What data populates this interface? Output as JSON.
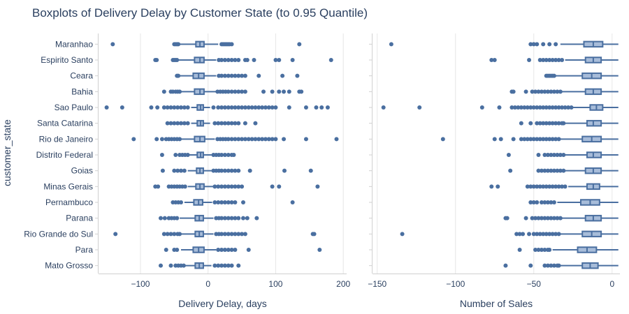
{
  "chart_data": {
    "title": "Boxplots of Delivery Delay by Customer State (to 0.95 Quantile)",
    "ylabel": "customer_state",
    "colors": {
      "fill": "#a7bcd9",
      "line": "#4a6fa0",
      "point": "#4a6fa0",
      "grid": "#e6e6e6",
      "axis": "#d0d0d0"
    },
    "states": [
      "Maranhao",
      "Espirito Santo",
      "Ceara",
      "Bahia",
      "Sao Paulo",
      "Santa Catarina",
      "Rio de Janeiro",
      "Distrito Federal",
      "Goias",
      "Minas Gerais",
      "Pernambuco",
      "Parana",
      "Rio Grande do Sul",
      "Para",
      "Mato Grosso"
    ],
    "panels": [
      {
        "type": "box",
        "orientation": "horizontal",
        "xlabel": "Delivery Delay, days",
        "xlim": [
          -162,
          205
        ],
        "xticks": [
          -100,
          0,
          100,
          200
        ],
        "xtick_labels": [
          "−100",
          "0",
          "100",
          "200"
        ],
        "boxes": [
          {
            "q1": -18,
            "median": -12,
            "q3": -6,
            "whisker_low": -42,
            "whisker_high": 15,
            "outliers": [
              -141,
              -50,
              -48,
              -46,
              -44,
              20,
              22,
              24,
              26,
              28,
              30,
              32,
              35,
              135
            ]
          },
          {
            "q1": -20,
            "median": -12,
            "q3": -6,
            "whisker_low": -45,
            "whisker_high": 12,
            "outliers": [
              -78,
              -76,
              -52,
              -50,
              -48,
              -46,
              16,
              20,
              25,
              30,
              35,
              40,
              45,
              55,
              58,
              68,
              100,
              105,
              125,
              182
            ]
          },
          {
            "q1": -22,
            "median": -14,
            "q3": -6,
            "whisker_low": -44,
            "whisker_high": 12,
            "outliers": [
              -46,
              -44,
              16,
              20,
              25,
              30,
              35,
              40,
              45,
              50,
              55,
              75,
              110,
              132
            ]
          },
          {
            "q1": -20,
            "median": -12,
            "q3": -6,
            "whisker_low": -40,
            "whisker_high": 12,
            "outliers": [
              -65,
              -55,
              -52,
              -48,
              -45,
              -42,
              14,
              18,
              22,
              26,
              30,
              35,
              40,
              45,
              50,
              55,
              82,
              95,
              105,
              112,
              120,
              135,
              138
            ]
          },
          {
            "q1": -16,
            "median": -11,
            "q3": -7,
            "whisker_low": -25,
            "whisker_high": 3,
            "outliers": [
              -150,
              -127,
              -84,
              -75,
              -65,
              -60,
              -55,
              -50,
              -45,
              -40,
              -35,
              -30,
              8,
              15,
              20,
              25,
              30,
              35,
              40,
              45,
              50,
              55,
              60,
              65,
              70,
              75,
              80,
              85,
              90,
              95,
              100,
              120,
              145,
              160,
              168,
              177
            ]
          },
          {
            "q1": -16,
            "median": -11,
            "q3": -7,
            "whisker_low": -25,
            "whisker_high": 3,
            "outliers": [
              -60,
              -55,
              -50,
              -45,
              -40,
              -35,
              -30,
              10,
              15,
              20,
              25,
              30,
              35,
              40,
              45,
              55,
              70
            ]
          },
          {
            "q1": -20,
            "median": -12,
            "q3": -5,
            "whisker_low": -40,
            "whisker_high": 10,
            "outliers": [
              -110,
              -76,
              -68,
              -62,
              -58,
              -54,
              -50,
              -46,
              -42,
              14,
              18,
              22,
              26,
              30,
              35,
              40,
              45,
              50,
              55,
              60,
              65,
              70,
              75,
              80,
              85,
              90,
              95,
              100,
              112,
              145,
              190
            ]
          },
          {
            "q1": -16,
            "median": -11,
            "q3": -7,
            "whisker_low": -28,
            "whisker_high": 5,
            "outliers": [
              -68,
              -48,
              -42,
              -38,
              -34,
              -30,
              8,
              12,
              16,
              20,
              25,
              30,
              35,
              38
            ]
          },
          {
            "q1": -17,
            "median": -12,
            "q3": -7,
            "whisker_low": -30,
            "whisker_high": 5,
            "outliers": [
              -67,
              -50,
              -45,
              -40,
              -35,
              8,
              12,
              16,
              20,
              25,
              30,
              35,
              40,
              45,
              62,
              113,
              152
            ]
          },
          {
            "q1": -18,
            "median": -12,
            "q3": -6,
            "whisker_low": -30,
            "whisker_high": 8,
            "outliers": [
              -78,
              -74,
              -58,
              -54,
              -50,
              -46,
              -42,
              -38,
              -34,
              10,
              15,
              20,
              25,
              30,
              35,
              40,
              45,
              50,
              95,
              105,
              162
            ]
          },
          {
            "q1": -21,
            "median": -14,
            "q3": -8,
            "whisker_low": -35,
            "whisker_high": 6,
            "outliers": [
              -52,
              -48,
              -44,
              -40,
              10,
              15,
              20,
              25,
              30,
              35,
              40,
              52,
              125
            ]
          },
          {
            "q1": -19,
            "median": -13,
            "q3": -7,
            "whisker_low": -42,
            "whisker_high": 8,
            "outliers": [
              -70,
              -64,
              -58,
              -54,
              -50,
              -46,
              12,
              16,
              20,
              25,
              30,
              35,
              40,
              45,
              52,
              58,
              72
            ]
          },
          {
            "q1": -19,
            "median": -13,
            "q3": -7,
            "whisker_low": -40,
            "whisker_high": 8,
            "outliers": [
              -137,
              -65,
              -60,
              -55,
              -50,
              -45,
              -42,
              12,
              16,
              20,
              25,
              30,
              35,
              40,
              45,
              50,
              55,
              155,
              157
            ]
          },
          {
            "q1": -22,
            "median": -14,
            "q3": -6,
            "whisker_low": -40,
            "whisker_high": 12,
            "outliers": [
              -62,
              -50,
              -46,
              15,
              20,
              25,
              30,
              35,
              40,
              60,
              165
            ]
          },
          {
            "q1": -19,
            "median": -13,
            "q3": -7,
            "whisker_low": -35,
            "whisker_high": 5,
            "outliers": [
              -70,
              -55,
              -48,
              -44,
              -40,
              -36,
              10,
              15,
              20,
              25,
              30,
              35,
              45
            ]
          }
        ]
      },
      {
        "type": "box",
        "orientation": "horizontal",
        "xlabel": "Number of Sales",
        "xlim": [
          -153,
          5
        ],
        "xticks": [
          -150,
          -100,
          -50,
          0
        ],
        "xtick_labels": [
          "−150",
          "−100",
          "−50",
          "0"
        ],
        "boxes": [
          {
            "q1": -18,
            "median": -12,
            "q3": -6,
            "whisker_low": -33,
            "whisker_high": 4,
            "outliers": [
              -141,
              -52,
              -50,
              -48,
              -44,
              -40,
              -36
            ]
          },
          {
            "q1": -17,
            "median": -12,
            "q3": -7,
            "whisker_low": -30,
            "whisker_high": 4,
            "outliers": [
              -77,
              -75,
              -53,
              -46,
              -44,
              -42,
              -40,
              -38,
              -36,
              -34,
              -32
            ]
          },
          {
            "q1": -19,
            "median": -13,
            "q3": -7,
            "whisker_low": -36,
            "whisker_high": 4,
            "outliers": [
              -42,
              -41,
              -40,
              -39,
              -38,
              -37
            ]
          },
          {
            "q1": -17,
            "median": -12,
            "q3": -7,
            "whisker_low": -32,
            "whisker_high": 4,
            "outliers": [
              -64,
              -63,
              -55,
              -51,
              -49,
              -47,
              -45,
              -43,
              -41,
              -39,
              -37,
              -35,
              -33
            ]
          },
          {
            "q1": -14,
            "median": -10,
            "q3": -6,
            "whisker_low": -25,
            "whisker_high": 4,
            "outliers": [
              -146,
              -123,
              -83,
              -72,
              -64,
              -62,
              -60,
              -58,
              -56,
              -54,
              -52,
              -50,
              -48,
              -46,
              -44,
              -42,
              -40,
              -38,
              -36,
              -34,
              -32,
              -30,
              -28,
              -26
            ]
          },
          {
            "q1": -16,
            "median": -12,
            "q3": -7,
            "whisker_low": -30,
            "whisker_high": 4,
            "outliers": [
              -58,
              -52,
              -48,
              -46,
              -44,
              -42,
              -40,
              -38,
              -36,
              -34,
              -32,
              -31
            ]
          },
          {
            "q1": -19,
            "median": -13,
            "q3": -7,
            "whisker_low": -33,
            "whisker_high": 4,
            "outliers": [
              -108,
              -75,
              -71,
              -63,
              -58,
              -56,
              -54,
              -52,
              -50,
              -48,
              -46,
              -44,
              -42,
              -40,
              -38,
              -36,
              -34
            ]
          },
          {
            "q1": -16,
            "median": -12,
            "q3": -7,
            "whisker_low": -30,
            "whisker_high": 4,
            "outliers": [
              -66,
              -47,
              -43,
              -41,
              -39,
              -37,
              -35,
              -33,
              -31
            ]
          },
          {
            "q1": -17,
            "median": -12,
            "q3": -7,
            "whisker_low": -30,
            "whisker_high": 4,
            "outliers": [
              -65,
              -47,
              -45,
              -43,
              -41,
              -39,
              -37,
              -35,
              -33,
              -31
            ]
          },
          {
            "q1": -16,
            "median": -12,
            "q3": -8,
            "whisker_low": -28,
            "whisker_high": 4,
            "outliers": [
              -77,
              -73,
              -54,
              -52,
              -50,
              -48,
              -46,
              -44,
              -42,
              -40,
              -38,
              -36,
              -34,
              -32,
              -30
            ]
          },
          {
            "q1": -20,
            "median": -14,
            "q3": -8,
            "whisker_low": -35,
            "whisker_high": 4,
            "outliers": [
              -52,
              -50,
              -48,
              -45,
              -43,
              -41,
              -39,
              -37
            ]
          },
          {
            "q1": -17,
            "median": -12,
            "q3": -7,
            "whisker_low": -32,
            "whisker_high": 4,
            "outliers": [
              -68,
              -67,
              -55,
              -51,
              -49,
              -47,
              -45,
              -43,
              -41,
              -39,
              -37,
              -35,
              -33
            ]
          },
          {
            "q1": -19,
            "median": -13,
            "q3": -7,
            "whisker_low": -33,
            "whisker_high": 4,
            "outliers": [
              -134,
              -61,
              -59,
              -57,
              -53,
              -50,
              -48,
              -46,
              -44,
              -42,
              -40,
              -38,
              -36,
              -34
            ]
          },
          {
            "q1": -22,
            "median": -16,
            "q3": -10,
            "whisker_low": -38,
            "whisker_high": 4,
            "outliers": [
              -59,
              -49,
              -47,
              -45,
              -43,
              -41,
              -40
            ]
          },
          {
            "q1": -19,
            "median": -14,
            "q3": -9,
            "whisker_low": -33,
            "whisker_high": 4,
            "outliers": [
              -68,
              -52,
              -43,
              -41,
              -39,
              -37,
              -35,
              -34
            ]
          }
        ]
      }
    ]
  }
}
